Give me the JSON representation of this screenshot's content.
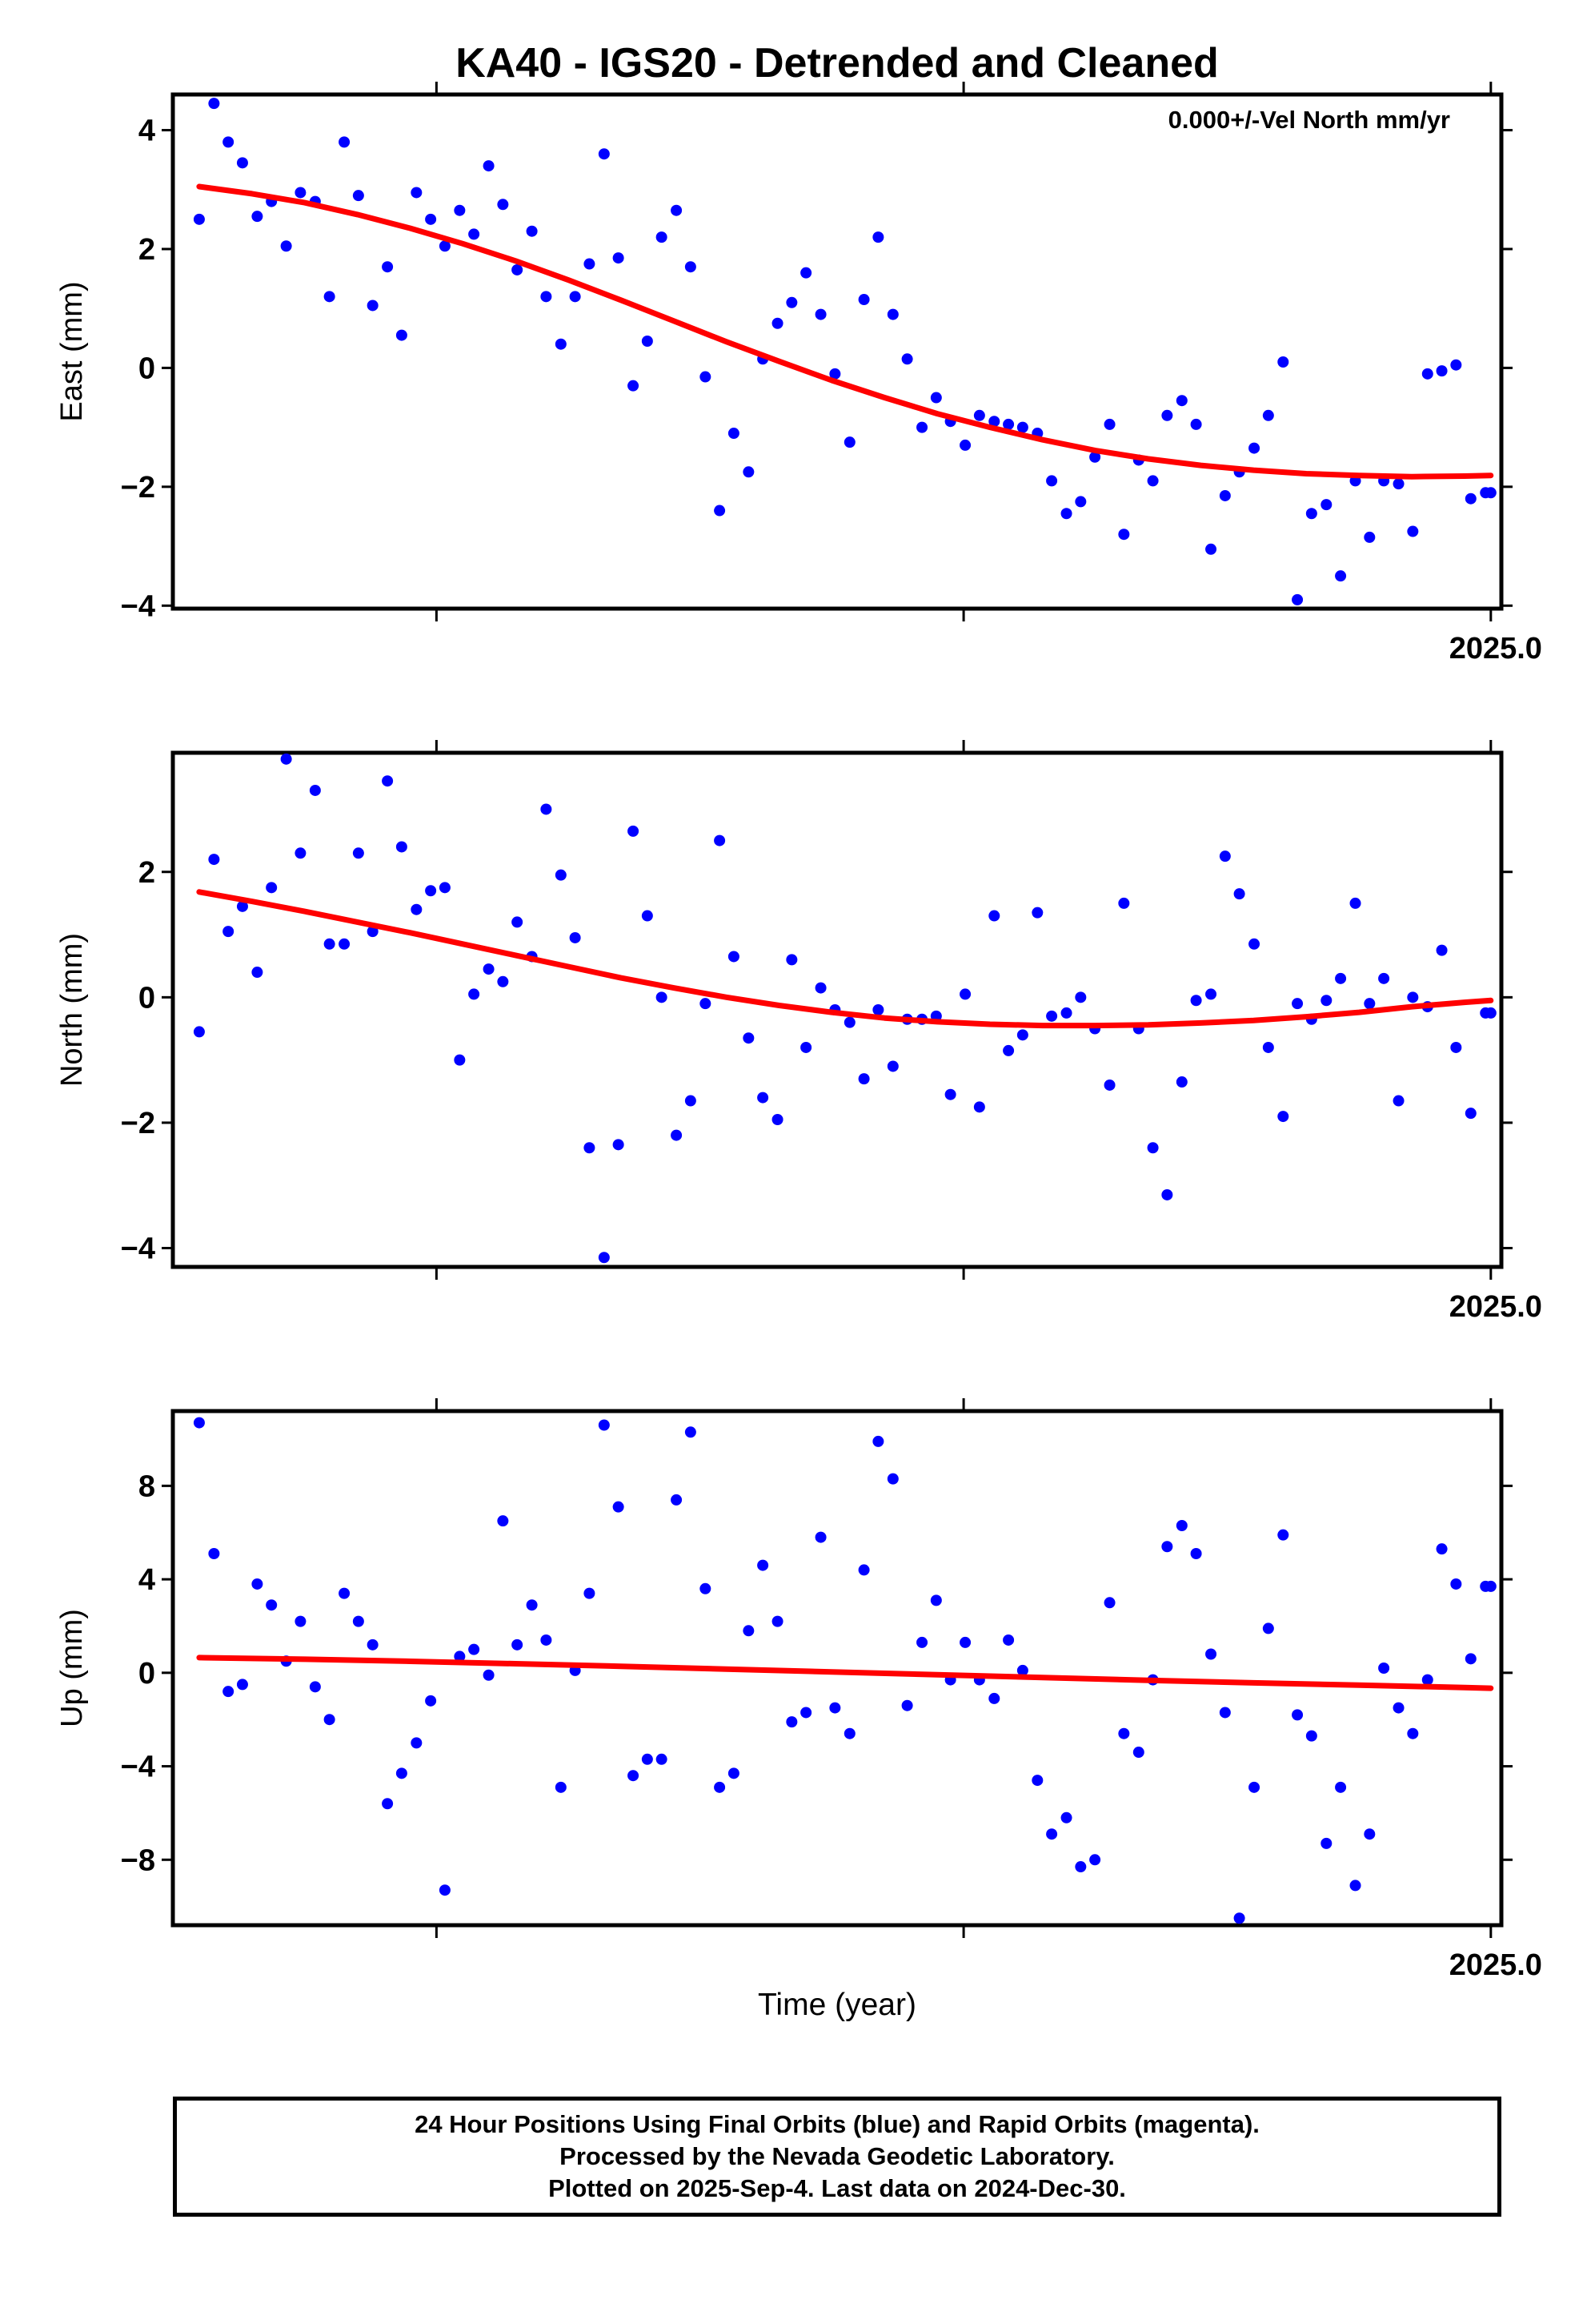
{
  "title": "KA40 - IGS20 - Detrended and Cleaned",
  "annotation": "0.000+/-Vel North mm/yr",
  "xlabel": "Time (year)",
  "footer": {
    "line1": "24 Hour Positions Using Final Orbits (blue) and Rapid Orbits (magenta).",
    "line2": "Processed by the Nevada Geodetic Laboratory.",
    "line3": "Plotted on 2025-Sep-4. Last data on 2024-Dec-30."
  },
  "colors": {
    "points": "#0000ff",
    "fit": "#ff0000",
    "axes": "#000000"
  },
  "chart_data": [
    {
      "type": "scatter",
      "ylabel": "East (mm)",
      "xlim": [
        2022.5,
        2025.02
      ],
      "ylim": [
        -4.05,
        4.6
      ],
      "yticks": [
        -4,
        -2,
        0,
        2,
        4
      ],
      "ytick_labels": [
        "−4",
        "−2",
        "0",
        "2",
        "4"
      ],
      "xticks": [
        2023.0,
        2024.0,
        2025.0
      ],
      "xtick_label": {
        "value": 2025.0,
        "text": "2025.0"
      },
      "grid": false,
      "points": {
        "x": [
          2022.55,
          2022.578,
          2022.605,
          2022.632,
          2022.66,
          2022.687,
          2022.715,
          2022.742,
          2022.77,
          2022.797,
          2022.825,
          2022.852,
          2022.879,
          2022.907,
          2022.934,
          2022.962,
          2022.989,
          2023.016,
          2023.044,
          2023.071,
          2023.099,
          2023.126,
          2023.153,
          2023.181,
          2023.208,
          2023.236,
          2023.263,
          2023.29,
          2023.318,
          2023.345,
          2023.373,
          2023.4,
          2023.427,
          2023.455,
          2023.482,
          2023.51,
          2023.537,
          2023.564,
          2023.592,
          2023.619,
          2023.647,
          2023.674,
          2023.701,
          2023.729,
          2023.756,
          2023.784,
          2023.811,
          2023.838,
          2023.866,
          2023.893,
          2023.921,
          2023.948,
          2023.975,
          2024.003,
          2024.03,
          2024.058,
          2024.085,
          2024.112,
          2024.14,
          2024.167,
          2024.195,
          2024.222,
          2024.249,
          2024.277,
          2024.304,
          2024.332,
          2024.359,
          2024.386,
          2024.414,
          2024.441,
          2024.469,
          2024.496,
          2024.523,
          2024.551,
          2024.578,
          2024.606,
          2024.633,
          2024.66,
          2024.688,
          2024.715,
          2024.743,
          2024.77,
          2024.797,
          2024.825,
          2024.852,
          2024.88,
          2024.907,
          2024.934,
          2024.962,
          2024.99,
          2025.0
        ],
        "y": [
          2.5,
          4.45,
          3.8,
          3.45,
          2.55,
          2.8,
          2.05,
          2.95,
          2.8,
          1.2,
          3.8,
          2.9,
          1.05,
          1.7,
          0.55,
          2.95,
          2.5,
          2.05,
          2.65,
          2.25,
          3.4,
          2.75,
          1.65,
          2.3,
          1.2,
          0.4,
          1.2,
          1.75,
          3.6,
          1.85,
          -0.3,
          0.45,
          2.2,
          2.65,
          1.7,
          -0.15,
          -2.4,
          -1.1,
          -1.75,
          0.15,
          0.75,
          1.1,
          1.6,
          0.9,
          -0.1,
          -1.25,
          1.15,
          2.2,
          0.9,
          0.15,
          -1.0,
          -0.5,
          -0.9,
          -1.3,
          -0.8,
          -0.9,
          -0.95,
          -1.0,
          -1.1,
          -1.9,
          -2.45,
          -2.25,
          -1.5,
          -0.95,
          -2.8,
          -1.55,
          -1.9,
          -0.8,
          -0.55,
          -0.95,
          -3.05,
          -2.15,
          -1.75,
          -1.35,
          -0.8,
          0.1,
          -3.9,
          -2.45,
          -2.3,
          -3.5,
          -1.9,
          -2.85,
          -1.9,
          -1.95,
          -2.75,
          -0.1,
          -0.05,
          0.05,
          -2.2,
          -2.1,
          -2.1
        ]
      },
      "fit": {
        "x": [
          2022.55,
          2022.65,
          2022.75,
          2022.85,
          2022.95,
          2023.05,
          2023.15,
          2023.25,
          2023.35,
          2023.45,
          2023.55,
          2023.65,
          2023.75,
          2023.85,
          2023.95,
          2024.05,
          2024.15,
          2024.25,
          2024.35,
          2024.45,
          2024.55,
          2024.65,
          2024.75,
          2024.85,
          2024.95,
          2025.0
        ],
        "y": [
          3.05,
          2.93,
          2.78,
          2.58,
          2.35,
          2.09,
          1.8,
          1.48,
          1.14,
          0.79,
          0.44,
          0.11,
          -0.21,
          -0.5,
          -0.77,
          -1.0,
          -1.21,
          -1.39,
          -1.53,
          -1.64,
          -1.72,
          -1.78,
          -1.81,
          -1.83,
          -1.82,
          -1.81
        ]
      }
    },
    {
      "type": "scatter",
      "ylabel": "North (mm)",
      "xlim": [
        2022.5,
        2025.02
      ],
      "ylim": [
        -4.3,
        3.9
      ],
      "yticks": [
        -4,
        -2,
        0,
        2
      ],
      "ytick_labels": [
        "−4",
        "−2",
        "0",
        "2"
      ],
      "xticks": [
        2023.0,
        2024.0,
        2025.0
      ],
      "xtick_label": {
        "value": 2025.0,
        "text": "2025.0"
      },
      "grid": false,
      "points": {
        "x": [
          2022.55,
          2022.578,
          2022.605,
          2022.632,
          2022.66,
          2022.687,
          2022.715,
          2022.742,
          2022.77,
          2022.797,
          2022.825,
          2022.852,
          2022.879,
          2022.907,
          2022.934,
          2022.962,
          2022.989,
          2023.016,
          2023.044,
          2023.071,
          2023.099,
          2023.126,
          2023.153,
          2023.181,
          2023.208,
          2023.236,
          2023.263,
          2023.29,
          2023.318,
          2023.345,
          2023.373,
          2023.4,
          2023.427,
          2023.455,
          2023.482,
          2023.51,
          2023.537,
          2023.564,
          2023.592,
          2023.619,
          2023.647,
          2023.674,
          2023.701,
          2023.729,
          2023.756,
          2023.784,
          2023.811,
          2023.838,
          2023.866,
          2023.893,
          2023.921,
          2023.948,
          2023.975,
          2024.003,
          2024.03,
          2024.058,
          2024.085,
          2024.112,
          2024.14,
          2024.167,
          2024.195,
          2024.222,
          2024.249,
          2024.277,
          2024.304,
          2024.332,
          2024.359,
          2024.386,
          2024.414,
          2024.441,
          2024.469,
          2024.496,
          2024.523,
          2024.551,
          2024.578,
          2024.606,
          2024.633,
          2024.66,
          2024.688,
          2024.715,
          2024.743,
          2024.77,
          2024.797,
          2024.825,
          2024.852,
          2024.88,
          2024.907,
          2024.934,
          2024.962,
          2024.99,
          2025.0
        ],
        "y": [
          -0.55,
          2.2,
          1.05,
          1.45,
          0.4,
          1.75,
          3.8,
          2.3,
          3.3,
          0.85,
          0.85,
          2.3,
          1.05,
          3.45,
          2.4,
          1.4,
          1.7,
          1.75,
          -1.0,
          0.05,
          0.45,
          0.25,
          1.2,
          0.65,
          3.0,
          1.95,
          0.95,
          -2.4,
          -4.15,
          -2.35,
          2.65,
          1.3,
          0.0,
          -2.2,
          -1.65,
          -0.1,
          2.5,
          0.65,
          -0.65,
          -1.6,
          -1.95,
          0.6,
          -0.8,
          0.15,
          -0.2,
          -0.4,
          -1.3,
          -0.2,
          -1.1,
          -0.35,
          -0.35,
          -0.3,
          -1.55,
          0.05,
          -1.75,
          1.3,
          -0.85,
          -0.6,
          1.35,
          -0.3,
          -0.25,
          0.0,
          -0.5,
          -1.4,
          1.5,
          -0.5,
          -2.4,
          -3.15,
          -1.35,
          -0.05,
          0.05,
          2.25,
          1.65,
          0.85,
          -0.8,
          -1.9,
          -0.1,
          -0.35,
          -0.05,
          0.3,
          1.5,
          -0.1,
          0.3,
          -1.65,
          0.0,
          -0.15,
          0.75,
          -0.8,
          -1.85,
          -0.25,
          -0.25
        ]
      },
      "fit": {
        "x": [
          2022.55,
          2022.65,
          2022.75,
          2022.85,
          2022.95,
          2023.05,
          2023.15,
          2023.25,
          2023.35,
          2023.45,
          2023.55,
          2023.65,
          2023.75,
          2023.85,
          2023.95,
          2024.05,
          2024.15,
          2024.25,
          2024.35,
          2024.45,
          2024.55,
          2024.65,
          2024.75,
          2024.85,
          2024.95,
          2025.0
        ],
        "y": [
          1.68,
          1.53,
          1.37,
          1.2,
          1.03,
          0.85,
          0.67,
          0.49,
          0.31,
          0.15,
          0.0,
          -0.13,
          -0.24,
          -0.33,
          -0.39,
          -0.43,
          -0.45,
          -0.45,
          -0.44,
          -0.41,
          -0.37,
          -0.31,
          -0.24,
          -0.15,
          -0.08,
          -0.05
        ]
      }
    },
    {
      "type": "scatter",
      "ylabel": "Up (mm)",
      "xlim": [
        2022.5,
        2025.02
      ],
      "ylim": [
        -10.8,
        11.2
      ],
      "yticks": [
        -8,
        -4,
        0,
        4,
        8
      ],
      "ytick_labels": [
        "−8",
        "−4",
        "0",
        "4",
        "8"
      ],
      "xticks": [
        2023.0,
        2024.0,
        2025.0
      ],
      "xtick_label": {
        "value": 2025.0,
        "text": "2025.0"
      },
      "grid": false,
      "points": {
        "x": [
          2022.55,
          2022.578,
          2022.605,
          2022.632,
          2022.66,
          2022.687,
          2022.715,
          2022.742,
          2022.77,
          2022.797,
          2022.825,
          2022.852,
          2022.879,
          2022.907,
          2022.934,
          2022.962,
          2022.989,
          2023.016,
          2023.044,
          2023.071,
          2023.099,
          2023.126,
          2023.153,
          2023.181,
          2023.208,
          2023.236,
          2023.263,
          2023.29,
          2023.318,
          2023.345,
          2023.373,
          2023.4,
          2023.427,
          2023.455,
          2023.482,
          2023.51,
          2023.537,
          2023.564,
          2023.592,
          2023.619,
          2023.647,
          2023.674,
          2023.701,
          2023.729,
          2023.756,
          2023.784,
          2023.811,
          2023.838,
          2023.866,
          2023.893,
          2023.921,
          2023.948,
          2023.975,
          2024.003,
          2024.03,
          2024.058,
          2024.085,
          2024.112,
          2024.14,
          2024.167,
          2024.195,
          2024.222,
          2024.249,
          2024.277,
          2024.304,
          2024.332,
          2024.359,
          2024.386,
          2024.414,
          2024.441,
          2024.469,
          2024.496,
          2024.523,
          2024.551,
          2024.578,
          2024.606,
          2024.633,
          2024.66,
          2024.688,
          2024.715,
          2024.743,
          2024.77,
          2024.797,
          2024.825,
          2024.852,
          2024.88,
          2024.907,
          2024.934,
          2024.962,
          2024.99,
          2025.0
        ],
        "y": [
          10.7,
          5.1,
          -0.8,
          -0.5,
          3.8,
          2.9,
          0.5,
          2.2,
          -0.6,
          -2.0,
          3.4,
          2.2,
          1.2,
          -5.6,
          -4.3,
          -3.0,
          -1.2,
          -9.3,
          0.7,
          1.0,
          -0.1,
          6.5,
          1.2,
          2.9,
          1.4,
          -4.9,
          0.1,
          3.4,
          10.6,
          7.1,
          -4.4,
          -3.7,
          -3.7,
          7.4,
          10.3,
          3.6,
          -4.9,
          -4.3,
          1.8,
          4.6,
          2.2,
          -2.1,
          -1.7,
          5.8,
          -1.5,
          -2.6,
          4.4,
          9.9,
          8.3,
          -1.4,
          1.3,
          3.1,
          -0.3,
          1.3,
          -0.3,
          -1.1,
          1.4,
          0.1,
          -4.6,
          -6.9,
          -6.2,
          -8.3,
          -8.0,
          3.0,
          -2.6,
          -3.4,
          -0.3,
          5.4,
          6.3,
          5.1,
          0.8,
          -1.7,
          -10.5,
          -4.9,
          1.9,
          5.9,
          -1.8,
          -2.7,
          -7.3,
          -4.9,
          -9.1,
          -6.9,
          0.2,
          -1.5,
          -2.6,
          -0.3,
          5.3,
          3.8,
          0.6,
          3.7,
          3.7
        ]
      },
      "fit": {
        "x": [
          2022.55,
          2022.75,
          2022.95,
          2023.15,
          2023.35,
          2023.55,
          2023.75,
          2023.95,
          2024.15,
          2024.35,
          2024.55,
          2024.75,
          2024.95,
          2025.0
        ],
        "y": [
          0.65,
          0.58,
          0.49,
          0.39,
          0.28,
          0.16,
          0.04,
          -0.08,
          -0.2,
          -0.32,
          -0.43,
          -0.53,
          -0.63,
          -0.66
        ]
      }
    }
  ]
}
